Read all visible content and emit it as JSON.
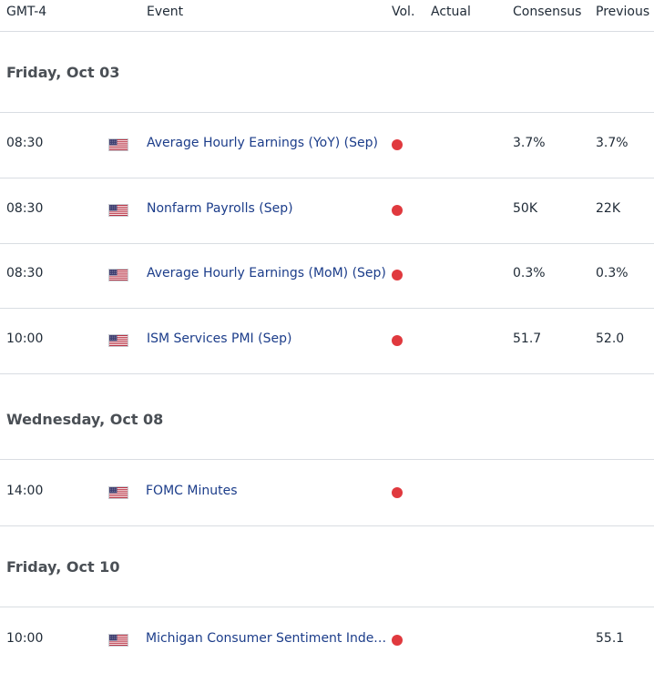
{
  "header": {
    "timezone": "GMT-4",
    "event": "Event",
    "vol": "Vol.",
    "actual": "Actual",
    "consensus": "Consensus",
    "previous": "Previous"
  },
  "colors": {
    "high_volatility": "#e0393e",
    "event_link": "#1c3d8a"
  },
  "days": [
    {
      "title": "Friday, Oct 03",
      "events": [
        {
          "time": "08:30",
          "flag": "us-flag-icon",
          "name": "Average Hourly Earnings (YoY) (Sep)",
          "actual": "",
          "consensus": "3.7%",
          "previous": "3.7%"
        },
        {
          "time": "08:30",
          "flag": "us-flag-icon",
          "name": "Nonfarm Payrolls (Sep)",
          "actual": "",
          "consensus": "50K",
          "previous": "22K"
        },
        {
          "time": "08:30",
          "flag": "us-flag-icon",
          "name": "Average Hourly Earnings (MoM) (Sep)",
          "actual": "",
          "consensus": "0.3%",
          "previous": "0.3%"
        },
        {
          "time": "10:00",
          "flag": "us-flag-icon",
          "name": "ISM Services PMI (Sep)",
          "actual": "",
          "consensus": "51.7",
          "previous": "52.0"
        }
      ]
    },
    {
      "title": "Wednesday, Oct 08",
      "events": [
        {
          "time": "14:00",
          "flag": "us-flag-icon",
          "name": "FOMC Minutes",
          "actual": "",
          "consensus": "",
          "previous": ""
        }
      ]
    },
    {
      "title": "Friday, Oct 10",
      "events": [
        {
          "time": "10:00",
          "flag": "us-flag-icon",
          "name": "Michigan Consumer Sentiment Index…",
          "actual": "",
          "consensus": "",
          "previous": "55.1"
        }
      ]
    }
  ]
}
